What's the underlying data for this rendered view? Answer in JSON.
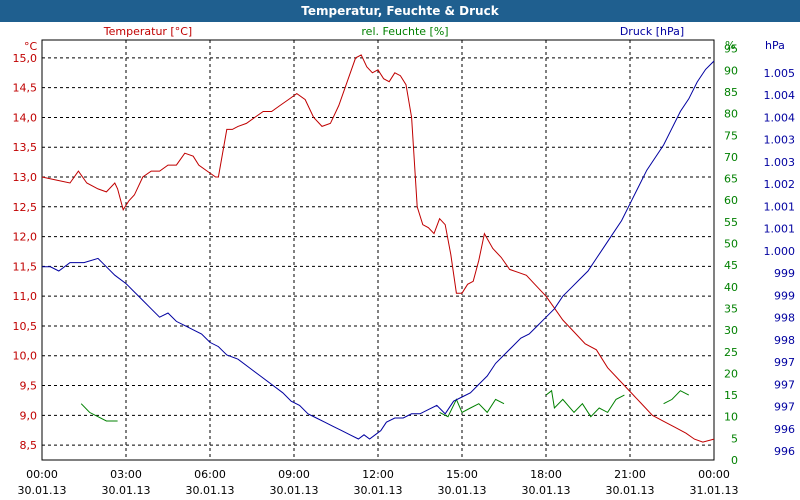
{
  "chart_data": {
    "type": "line",
    "title": "Temperatur, Feuchte & Druck",
    "x_time_labels": [
      "00:00",
      "03:00",
      "06:00",
      "09:00",
      "12:00",
      "15:00",
      "18:00",
      "21:00",
      "00:00"
    ],
    "x_date_labels": [
      "30.01.13",
      "30.01.13",
      "30.01.13",
      "30.01.13",
      "30.01.13",
      "30.01.13",
      "30.01.13",
      "30.01.13",
      "31.01.13"
    ],
    "x_hours_range": [
      0,
      24
    ],
    "axes": {
      "temperature": {
        "label": "Temperatur [°C]",
        "unit": "°C",
        "range": [
          8.25,
          15.3
        ],
        "ticks": [
          "8,5",
          "9,0",
          "9,5",
          "10,0",
          "10,5",
          "11,0",
          "11,5",
          "12,0",
          "12,5",
          "13,0",
          "13,5",
          "14,0",
          "14,5",
          "15,0"
        ],
        "tick_values": [
          8.5,
          9.0,
          9.5,
          10.0,
          10.5,
          11.0,
          11.5,
          12.0,
          12.5,
          13.0,
          13.5,
          14.0,
          14.5,
          15.0
        ],
        "color": "#c00000"
      },
      "humidity": {
        "label": "rel. Feuchte [%]",
        "unit": "%",
        "range": [
          0,
          97
        ],
        "ticks": [
          "0",
          "5",
          "10",
          "15",
          "20",
          "25",
          "30",
          "35",
          "40",
          "45",
          "50",
          "55",
          "60",
          "65",
          "70",
          "75",
          "80",
          "85",
          "90",
          "95"
        ],
        "tick_values": [
          0,
          5,
          10,
          15,
          20,
          25,
          30,
          35,
          40,
          45,
          50,
          55,
          60,
          65,
          70,
          75,
          80,
          85,
          90,
          95
        ],
        "color": "#008000"
      },
      "pressure": {
        "label": "Druck [hPa]",
        "unit": "hPa",
        "range": [
          995.5,
          1005.5
        ],
        "ticks": [
          "996",
          "996",
          "997",
          "997",
          "997",
          "998",
          "998",
          "999",
          "999",
          "1.000",
          "1.001",
          "1.001",
          "1.002",
          "1.003",
          "1.003",
          "1.004",
          "1.004",
          "1.005"
        ],
        "color": "#0000a0"
      }
    },
    "series": [
      {
        "name": "Temperatur",
        "axis": "temperature",
        "color": "#c00000",
        "x": [
          0,
          0.5,
          1,
          1.3,
          1.6,
          2,
          2.3,
          2.6,
          2.7,
          2.9,
          3.1,
          3.3,
          3.6,
          3.9,
          4.2,
          4.5,
          4.8,
          5.1,
          5.4,
          5.6,
          5.9,
          6.2,
          6.3,
          6.6,
          6.8,
          7.0,
          7.3,
          7.6,
          7.9,
          8.2,
          8.5,
          8.8,
          9.1,
          9.4,
          9.7,
          10.0,
          10.3,
          10.6,
          10.9,
          11.2,
          11.4,
          11.6,
          11.8,
          12.0,
          12.2,
          12.4,
          12.6,
          12.8,
          13.0,
          13.2,
          13.4,
          13.6,
          13.8,
          14.0,
          14.2,
          14.4,
          14.6,
          14.8,
          15.0,
          15.2,
          15.4,
          15.6,
          15.8,
          16.1,
          16.4,
          16.7,
          17.0,
          17.3,
          17.6,
          18.0,
          18.3,
          18.6,
          19.0,
          19.4,
          19.8,
          20.2,
          20.6,
          21.0,
          21.4,
          21.8,
          22.2,
          22.6,
          23.0,
          23.3,
          23.6,
          24.0
        ],
        "values": [
          13.0,
          12.95,
          12.9,
          13.1,
          12.9,
          12.8,
          12.75,
          12.9,
          12.8,
          12.45,
          12.6,
          12.7,
          13.0,
          13.1,
          13.1,
          13.2,
          13.2,
          13.4,
          13.35,
          13.2,
          13.1,
          13.0,
          13.0,
          13.8,
          13.8,
          13.85,
          13.9,
          14.0,
          14.1,
          14.1,
          14.2,
          14.3,
          14.4,
          14.3,
          14.0,
          13.85,
          13.9,
          14.2,
          14.6,
          15.0,
          15.05,
          14.85,
          14.75,
          14.8,
          14.65,
          14.6,
          14.75,
          14.7,
          14.55,
          14.0,
          12.5,
          12.2,
          12.15,
          12.05,
          12.3,
          12.2,
          11.7,
          11.05,
          11.05,
          11.2,
          11.25,
          11.6,
          12.05,
          11.8,
          11.65,
          11.45,
          11.4,
          11.35,
          11.2,
          11.0,
          10.8,
          10.6,
          10.4,
          10.2,
          10.1,
          9.8,
          9.6,
          9.4,
          9.2,
          9.0,
          8.9,
          8.8,
          8.7,
          8.6,
          8.55,
          8.6
        ]
      },
      {
        "name": "rel. Feuchte",
        "axis": "humidity",
        "color": "#008000",
        "segments": [
          {
            "x": [
              1.4,
              1.7,
              2.0,
              2.3,
              2.7
            ],
            "values": [
              13,
              11,
              10,
              9,
              9
            ]
          },
          {
            "x": [
              14.2,
              14.5,
              14.8,
              15.0,
              15.3,
              15.6,
              15.9,
              16.2,
              16.5
            ],
            "values": [
              11,
              10,
              14,
              11,
              12,
              13,
              11,
              14,
              13
            ]
          },
          {
            "x": [
              18.0,
              18.2,
              18.3,
              18.6,
              19.0,
              19.3,
              19.6,
              19.9,
              20.2,
              20.5,
              20.8
            ],
            "values": [
              15,
              16,
              12,
              14,
              11,
              13,
              10,
              12,
              11,
              14,
              15
            ]
          },
          {
            "x": [
              22.2,
              22.5,
              22.8,
              23.1
            ],
            "values": [
              13,
              14,
              16,
              15
            ]
          }
        ]
      },
      {
        "name": "Druck",
        "axis": "pressure",
        "color": "#0000a0",
        "x": [
          0,
          0.3,
          0.6,
          1,
          1.5,
          2,
          2.3,
          2.6,
          3.0,
          3.3,
          3.6,
          3.9,
          4.2,
          4.5,
          4.8,
          5.1,
          5.4,
          5.7,
          6.0,
          6.3,
          6.6,
          7.0,
          7.4,
          7.8,
          8.2,
          8.6,
          8.9,
          9.2,
          9.5,
          9.8,
          10.1,
          10.4,
          10.7,
          11.0,
          11.3,
          11.5,
          11.7,
          11.9,
          12.1,
          12.3,
          12.6,
          12.9,
          13.2,
          13.5,
          13.8,
          14.1,
          14.4,
          14.7,
          15.0,
          15.3,
          15.6,
          15.9,
          16.2,
          16.5,
          16.8,
          17.1,
          17.4,
          17.7,
          18.0,
          18.3,
          18.6,
          18.9,
          19.2,
          19.5,
          19.8,
          20.1,
          20.4,
          20.7,
          21.0,
          21.3,
          21.6,
          21.9,
          22.2,
          22.5,
          22.8,
          23.1,
          23.4,
          23.7,
          24.0
        ],
        "values": [
          1000.1,
          1000.1,
          1000.0,
          1000.2,
          1000.2,
          1000.3,
          1000.1,
          999.9,
          999.7,
          999.5,
          999.3,
          999.1,
          998.9,
          999.0,
          998.8,
          998.7,
          998.6,
          998.5,
          998.3,
          998.2,
          998.0,
          997.9,
          997.7,
          997.5,
          997.3,
          997.1,
          996.9,
          996.8,
          996.6,
          996.5,
          996.4,
          996.3,
          996.2,
          996.1,
          996.0,
          996.1,
          996.0,
          996.1,
          996.2,
          996.4,
          996.5,
          996.5,
          996.6,
          996.6,
          996.7,
          996.8,
          996.6,
          996.9,
          997.0,
          997.1,
          997.3,
          997.5,
          997.8,
          998.0,
          998.2,
          998.4,
          998.5,
          998.7,
          998.9,
          999.1,
          999.4,
          999.6,
          999.8,
          1000.0,
          1000.3,
          1000.6,
          1000.9,
          1001.2,
          1001.6,
          1002.0,
          1002.4,
          1002.7,
          1003.0,
          1003.4,
          1003.8,
          1004.1,
          1004.5,
          1004.8,
          1005.0
        ]
      }
    ]
  }
}
